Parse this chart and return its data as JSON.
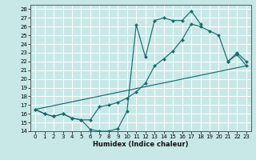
{
  "xlabel": "Humidex (Indice chaleur)",
  "bg_color": "#c8e8e8",
  "grid_color": "#b8d8d8",
  "line_color": "#1a6b6b",
  "xlim": [
    -0.5,
    23.5
  ],
  "ylim": [
    14,
    28.5
  ],
  "xticks": [
    0,
    1,
    2,
    3,
    4,
    5,
    6,
    7,
    8,
    9,
    10,
    11,
    12,
    13,
    14,
    15,
    16,
    17,
    18,
    19,
    20,
    21,
    22,
    23
  ],
  "yticks": [
    14,
    15,
    16,
    17,
    18,
    19,
    20,
    21,
    22,
    23,
    24,
    25,
    26,
    27,
    28
  ],
  "curve1_x": [
    0,
    1,
    2,
    3,
    4,
    5,
    6,
    7,
    8,
    9,
    10,
    11,
    12,
    13,
    14,
    15,
    16,
    17,
    18,
    19,
    20,
    21,
    22,
    23
  ],
  "curve1_y": [
    16.5,
    16.0,
    15.7,
    16.0,
    15.5,
    15.3,
    14.2,
    14.0,
    14.0,
    14.3,
    16.3,
    26.2,
    22.5,
    26.7,
    27.0,
    26.7,
    26.7,
    27.8,
    26.3,
    null,
    null,
    22.0,
    22.8,
    21.5
  ],
  "curve2_x": [
    0,
    1,
    2,
    3,
    4,
    5,
    6,
    7,
    8,
    9,
    10,
    11,
    12,
    13,
    14,
    15,
    16,
    17,
    18,
    19,
    20,
    21,
    22,
    23
  ],
  "curve2_y": [
    16.5,
    16.0,
    15.7,
    16.0,
    15.5,
    15.3,
    15.3,
    16.8,
    17.0,
    17.3,
    17.8,
    18.5,
    19.5,
    21.5,
    22.3,
    23.2,
    24.5,
    26.3,
    26.0,
    25.5,
    25.0,
    22.0,
    23.0,
    22.0
  ],
  "curve3_x": [
    0,
    23
  ],
  "curve3_y": [
    16.5,
    21.5
  ]
}
